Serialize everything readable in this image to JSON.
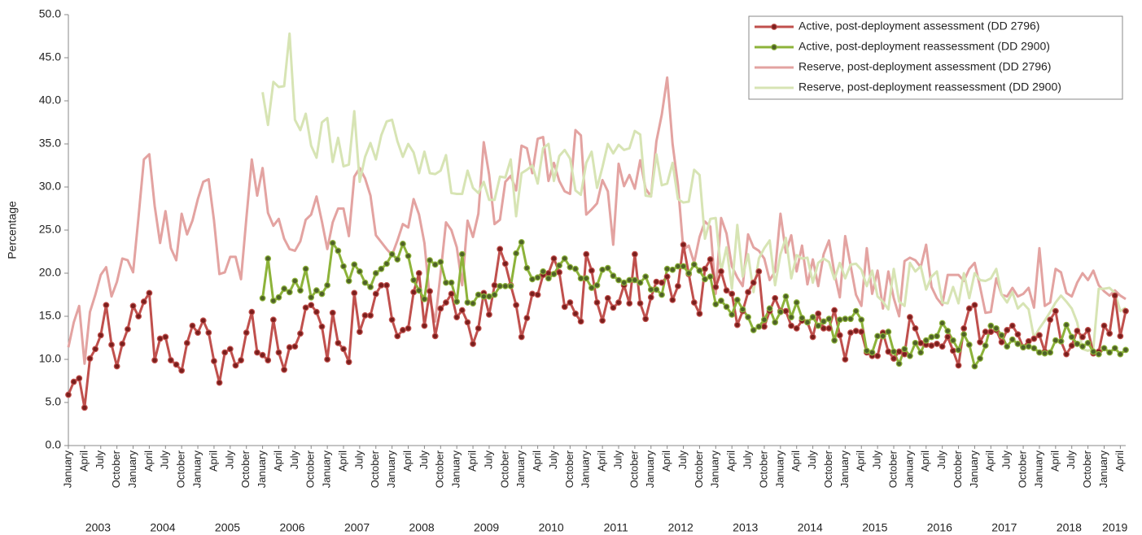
{
  "chart_data": {
    "type": "line",
    "y_label": "Percentage",
    "ylim": [
      0,
      50
    ],
    "yticks": [
      {
        "value": 0,
        "label": "0.0"
      },
      {
        "value": 5,
        "label": "5.0"
      },
      {
        "value": 10,
        "label": "10.0"
      },
      {
        "value": 15,
        "label": "15.0"
      },
      {
        "value": 20,
        "label": "20.0"
      },
      {
        "value": 25,
        "label": "25.0"
      },
      {
        "value": 30,
        "label": "30.0"
      },
      {
        "value": 35,
        "label": "35.0"
      },
      {
        "value": 40,
        "label": "40.0"
      },
      {
        "value": 45,
        "label": "45.0"
      },
      {
        "value": 50,
        "label": "50.0"
      }
    ],
    "legend": "top-right",
    "year_groups": [
      "2003",
      "2004",
      "2005",
      "2006",
      "2007",
      "2008",
      "2009",
      "2010",
      "2011",
      "2012",
      "2013",
      "2014",
      "2015",
      "2016",
      "2017",
      "2018",
      "2019"
    ],
    "categories": [
      "January",
      null,
      null,
      "April",
      null,
      null,
      "July",
      null,
      null,
      "October",
      null,
      null,
      "January",
      null,
      null,
      "April",
      null,
      null,
      "July",
      null,
      null,
      "October",
      null,
      null,
      "January",
      null,
      null,
      "April",
      null,
      null,
      "July",
      null,
      null,
      "October",
      null,
      null,
      "January",
      null,
      null,
      "April",
      null,
      null,
      "July",
      null,
      null,
      "October",
      null,
      null,
      "January",
      null,
      null,
      "April",
      null,
      null,
      "July",
      null,
      null,
      "October",
      null,
      null,
      "January",
      null,
      null,
      "April",
      null,
      null,
      "July",
      null,
      null,
      "October",
      null,
      null,
      "January",
      null,
      null,
      "April",
      null,
      null,
      "July",
      null,
      null,
      "October",
      null,
      null,
      "January",
      null,
      null,
      "April",
      null,
      null,
      "July",
      null,
      null,
      "October",
      null,
      null,
      "January",
      null,
      null,
      "April",
      null,
      null,
      "July",
      null,
      null,
      "October",
      null,
      null,
      "January",
      null,
      null,
      "April",
      null,
      null,
      "July",
      null,
      null,
      "October",
      null,
      null,
      "January",
      null,
      null,
      "April",
      null,
      null,
      "July",
      null,
      null,
      "October",
      null,
      null,
      "January",
      null,
      null,
      "April",
      null,
      null,
      "July",
      null,
      null,
      "October",
      null,
      null,
      "January",
      null,
      null,
      "April",
      null,
      null,
      "July",
      null,
      null,
      "October",
      null,
      null,
      "January",
      null,
      null,
      "April",
      null,
      null,
      "July",
      null,
      null,
      "October",
      null,
      null,
      "January",
      null,
      null,
      "April",
      null,
      null,
      "July",
      null,
      null,
      "October",
      null,
      null,
      "January",
      null,
      null,
      "April",
      null,
      null,
      "July",
      null,
      null,
      "October",
      null,
      null,
      "January",
      null,
      null,
      "April",
      null
    ],
    "series": [
      {
        "name": "Active, post-deployment assessment (DD 2796)",
        "color": "#c0504d",
        "marker_color": "#7a1f1d",
        "markers": true,
        "values": [
          5.9,
          7.4,
          7.8,
          4.4,
          10.1,
          11.2,
          12.8,
          16.3,
          11.7,
          9.2,
          11.8,
          13.5,
          16.2,
          15.0,
          16.7,
          17.7,
          9.9,
          12.4,
          12.6,
          9.9,
          9.4,
          8.7,
          11.9,
          13.9,
          13.1,
          14.5,
          13.1,
          9.8,
          7.3,
          10.8,
          11.2,
          9.3,
          9.9,
          13.1,
          15.5,
          10.8,
          10.5,
          9.9,
          14.6,
          10.8,
          8.8,
          11.4,
          11.5,
          13.0,
          16.0,
          16.3,
          15.5,
          13.8,
          10.0,
          15.4,
          11.9,
          11.2,
          9.7,
          17.7,
          13.2,
          15.1,
          15.1,
          17.6,
          18.6,
          18.6,
          14.6,
          12.7,
          13.4,
          13.6,
          17.8,
          20.0,
          13.9,
          17.9,
          12.7,
          15.9,
          16.6,
          17.6,
          14.9,
          15.7,
          14.3,
          11.8,
          13.6,
          17.7,
          15.2,
          18.6,
          22.8,
          21.1,
          18.6,
          16.3,
          12.6,
          14.8,
          17.6,
          17.5,
          19.8,
          20.0,
          21.7,
          20.1,
          16.1,
          16.6,
          15.3,
          14.4,
          22.2,
          20.3,
          16.6,
          14.5,
          17.1,
          16.0,
          16.6,
          18.6,
          16.5,
          22.2,
          16.5,
          14.7,
          17.2,
          19.0,
          18.9,
          19.6,
          16.9,
          18.5,
          23.3,
          19.9,
          16.6,
          15.3,
          20.5,
          21.6,
          18.4,
          20.2,
          18.0,
          17.6,
          14.0,
          15.6,
          17.8,
          18.9,
          20.2,
          13.8,
          15.6,
          17.1,
          15.6,
          15.6,
          13.9,
          13.6,
          14.5,
          14.3,
          12.6,
          15.3,
          13.6,
          13.6,
          15.7,
          12.8,
          10.0,
          13.1,
          13.3,
          13.2,
          10.8,
          10.4,
          10.4,
          13.1,
          10.9,
          10.1,
          10.9,
          10.6,
          14.9,
          13.6,
          11.9,
          11.7,
          11.6,
          11.8,
          11.5,
          12.6,
          11.0,
          9.3,
          13.6,
          15.9,
          16.3,
          12.0,
          13.2,
          13.2,
          13.4,
          12.0,
          13.4,
          13.9,
          12.9,
          11.4,
          12.1,
          12.4,
          12.8,
          10.9,
          14.6,
          15.6,
          12.1,
          10.6,
          11.6,
          13.3,
          12.6,
          13.4,
          10.7,
          10.9,
          13.9,
          13.0,
          17.4,
          12.7,
          15.6
        ]
      },
      {
        "name": "Active, post-deployment reassessment (DD 2900)",
        "color": "#8db33a",
        "marker_color": "#4f6228",
        "markers": true,
        "values": [
          null,
          null,
          null,
          null,
          null,
          null,
          null,
          null,
          null,
          null,
          null,
          null,
          null,
          null,
          null,
          null,
          null,
          null,
          null,
          null,
          null,
          null,
          null,
          null,
          null,
          null,
          null,
          null,
          null,
          null,
          null,
          null,
          null,
          null,
          null,
          null,
          17.1,
          21.7,
          16.8,
          17.2,
          18.2,
          17.8,
          19.1,
          18.0,
          20.5,
          17.2,
          18.0,
          17.6,
          18.6,
          23.5,
          22.6,
          20.8,
          19.1,
          21.0,
          20.2,
          18.9,
          18.4,
          20.0,
          20.5,
          21.1,
          22.2,
          21.6,
          23.4,
          22.0,
          19.2,
          18.0,
          17.0,
          21.5,
          21.0,
          21.3,
          18.9,
          18.9,
          16.7,
          22.2,
          16.6,
          16.5,
          17.5,
          17.3,
          17.3,
          17.5,
          18.5,
          18.5,
          18.5,
          22.3,
          23.6,
          20.6,
          19.3,
          19.5,
          20.2,
          19.4,
          19.9,
          20.9,
          21.7,
          20.7,
          20.5,
          19.4,
          19.4,
          18.3,
          18.6,
          20.4,
          20.6,
          19.7,
          19.2,
          18.9,
          19.2,
          19.2,
          18.9,
          19.6,
          18.1,
          18.1,
          17.5,
          20.5,
          20.4,
          20.8,
          20.8,
          20.0,
          21.0,
          20.3,
          19.3,
          19.6,
          16.4,
          16.8,
          16.1,
          15.2,
          16.9,
          15.8,
          14.9,
          13.4,
          13.8,
          14.6,
          15.9,
          14.3,
          15.5,
          17.3,
          14.9,
          16.6,
          14.8,
          14.3,
          14.9,
          13.9,
          14.4,
          14.7,
          12.2,
          14.6,
          14.7,
          14.7,
          15.6,
          14.6,
          11.0,
          10.8,
          12.7,
          12.7,
          13.2,
          10.9,
          9.5,
          11.2,
          10.4,
          11.9,
          10.8,
          12.2,
          12.6,
          12.7,
          14.2,
          13.3,
          12.2,
          11.1,
          12.9,
          11.7,
          9.2,
          10.1,
          11.6,
          13.9,
          13.6,
          12.8,
          11.5,
          12.3,
          11.8,
          11.4,
          11.5,
          11.3,
          10.8,
          10.7,
          10.8,
          12.2,
          12.1,
          14.0,
          12.6,
          11.8,
          11.5,
          11.9,
          10.9,
          10.6,
          11.3,
          10.8,
          11.3,
          10.6,
          11.1
        ]
      },
      {
        "name": "Reserve, post-deployment assessment (DD 2796)",
        "color": "#e3a3a1",
        "markers": false,
        "values": [
          11.4,
          14.3,
          16.2,
          9.5,
          15.5,
          17.5,
          19.8,
          20.7,
          17.3,
          19.0,
          21.7,
          21.5,
          20.1,
          26.5,
          33.2,
          33.8,
          27.8,
          23.5,
          27.2,
          22.9,
          21.5,
          26.9,
          24.5,
          26.1,
          28.6,
          30.6,
          30.9,
          26.1,
          19.9,
          20.1,
          21.9,
          21.9,
          19.3,
          26.4,
          33.2,
          29.0,
          32.2,
          27.0,
          25.5,
          26.3,
          24.0,
          22.8,
          22.6,
          23.7,
          26.2,
          26.8,
          28.9,
          26.0,
          22.8,
          25.9,
          27.5,
          27.5,
          24.3,
          31.2,
          32.2,
          31.0,
          29.0,
          24.4,
          23.6,
          22.8,
          22.1,
          23.8,
          25.7,
          25.3,
          28.6,
          26.8,
          23.5,
          17.0,
          14.4,
          20.0,
          25.9,
          25.0,
          23.0,
          18.6,
          26.1,
          24.2,
          26.9,
          35.2,
          31.4,
          25.7,
          26.2,
          30.6,
          31.3,
          29.6,
          34.8,
          34.5,
          31.6,
          35.6,
          35.8,
          30.7,
          32.8,
          30.7,
          29.5,
          29.2,
          36.6,
          36.0,
          26.8,
          27.4,
          28.1,
          30.8,
          29.5,
          23.3,
          32.7,
          30.1,
          31.4,
          29.8,
          33.1,
          29.8,
          28.9,
          35.3,
          38.4,
          42.7,
          35.0,
          30.2,
          22.7,
          23.2,
          21.2,
          24.2,
          26.0,
          25.4,
          17.6,
          26.4,
          24.6,
          20.8,
          19.5,
          18.5,
          24.5,
          23.0,
          22.6,
          21.7,
          19.2,
          20.2,
          26.9,
          22.4,
          24.4,
          20.2,
          23.2,
          18.7,
          21.6,
          18.5,
          22.2,
          23.8,
          20.0,
          17.2,
          24.3,
          20.9,
          17.5,
          16.2,
          22.9,
          17.6,
          20.3,
          15.9,
          20.2,
          17.1,
          15.0,
          21.4,
          21.8,
          21.5,
          20.7,
          23.3,
          18.4,
          17.1,
          16.3,
          19.8,
          19.8,
          19.8,
          19.1,
          20.5,
          21.2,
          18.4,
          15.4,
          15.5,
          19.4,
          17.5,
          17.3,
          18.3,
          17.3,
          17.6,
          18.3,
          16.0,
          22.9,
          16.2,
          16.6,
          20.5,
          20.1,
          17.7,
          17.3,
          18.9,
          20.0,
          19.2,
          20.3,
          18.6,
          17.9,
          17.4,
          18.0,
          17.4,
          17.0
        ]
      },
      {
        "name": "Reserve, post-deployment reassessment (DD 2900)",
        "color": "#d7e4b4",
        "markers": false,
        "values": [
          null,
          null,
          null,
          null,
          null,
          null,
          null,
          null,
          null,
          null,
          null,
          null,
          null,
          null,
          null,
          null,
          null,
          null,
          null,
          null,
          null,
          null,
          null,
          null,
          null,
          null,
          null,
          null,
          null,
          null,
          null,
          null,
          null,
          null,
          null,
          null,
          41.0,
          37.2,
          42.2,
          41.6,
          41.7,
          47.8,
          37.8,
          36.6,
          38.5,
          34.8,
          33.4,
          37.5,
          38.0,
          32.9,
          35.7,
          32.4,
          32.6,
          38.8,
          30.6,
          33.5,
          35.1,
          33.2,
          36.0,
          37.6,
          37.8,
          35.3,
          33.5,
          35.0,
          34.0,
          31.6,
          34.1,
          31.6,
          31.5,
          31.9,
          33.7,
          29.3,
          29.2,
          29.2,
          31.9,
          29.9,
          29.3,
          30.6,
          28.5,
          28.5,
          31.2,
          31.1,
          33.2,
          26.6,
          31.6,
          32.0,
          32.5,
          30.4,
          34.5,
          35.0,
          30.7,
          33.6,
          34.3,
          33.3,
          29.6,
          29.1,
          32.8,
          34.1,
          29.9,
          32.3,
          35.0,
          33.9,
          34.9,
          34.3,
          34.5,
          36.5,
          36.1,
          29.0,
          28.9,
          33.8,
          30.2,
          30.4,
          32.8,
          28.6,
          28.2,
          28.3,
          32.0,
          31.4,
          24.0,
          26.3,
          26.4,
          20.2,
          23.0,
          18.2,
          25.6,
          19.6,
          22.2,
          17.8,
          21.7,
          22.9,
          23.8,
          18.6,
          22.2,
          24.1,
          19.4,
          22.1,
          21.7,
          21.8,
          18.9,
          21.2,
          21.7,
          21.3,
          19.3,
          21.2,
          19.4,
          21.0,
          21.1,
          20.4,
          18.5,
          20.3,
          17.3,
          16.7,
          15.8,
          20.5,
          16.7,
          16.2,
          21.2,
          20.2,
          20.8,
          18.1,
          19.6,
          20.2,
          16.6,
          16.5,
          18.4,
          16.5,
          20.0,
          17.1,
          20.0,
          19.2,
          19.1,
          19.4,
          20.5,
          17.5,
          16.6,
          17.8,
          15.9,
          16.5,
          15.8,
          12.5,
          13.6,
          14.5,
          15.5,
          16.6,
          17.4,
          16.7,
          15.9,
          14.3,
          11.2,
          11.0,
          11.3,
          18.2,
          18.2,
          18.3,
          17.7,
          15.6,
          16.0
        ]
      }
    ]
  }
}
